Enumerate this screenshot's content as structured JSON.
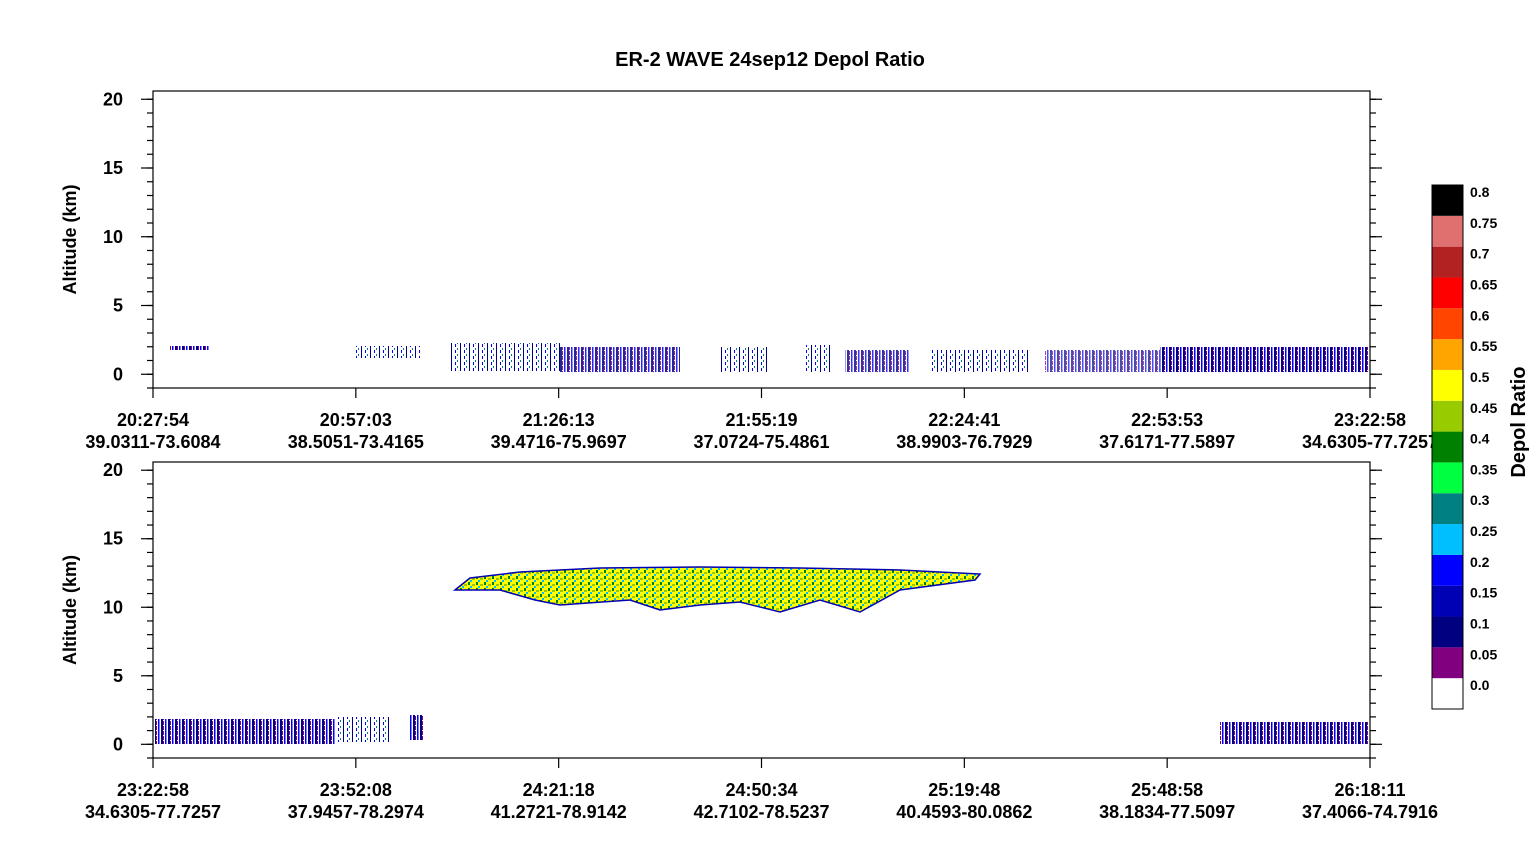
{
  "title": "ER-2 WAVE 24sep12 Depol Ratio",
  "chart_data": [
    {
      "type": "curtain",
      "ylabel": "Altitude (km)",
      "ylim": [
        -1,
        20.6
      ],
      "yticks": [
        0,
        5,
        10,
        15,
        20
      ],
      "xticks": [
        {
          "time": "20:27:54",
          "location": "39.0311-73.6084"
        },
        {
          "time": "20:57:03",
          "location": "38.5051-73.4165"
        },
        {
          "time": "21:26:13",
          "location": "39.4716-75.9697"
        },
        {
          "time": "21:55:19",
          "location": "37.0724-75.4861"
        },
        {
          "time": "22:24:41",
          "location": "38.9903-76.7929"
        },
        {
          "time": "22:53:53",
          "location": "37.6171-77.5897"
        },
        {
          "time": "23:22:58",
          "location": "34.6305-77.7257"
        }
      ]
    },
    {
      "type": "curtain",
      "ylabel": "Altitude (km)",
      "ylim": [
        -1,
        20.6
      ],
      "yticks": [
        0,
        5,
        10,
        15,
        20
      ],
      "xticks": [
        {
          "time": "23:22:58",
          "location": "34.6305-77.7257"
        },
        {
          "time": "23:52:08",
          "location": "37.9457-78.2974"
        },
        {
          "time": "24:21:18",
          "location": "41.2721-78.9142"
        },
        {
          "time": "24:50:34",
          "location": "42.7102-78.5237"
        },
        {
          "time": "25:19:48",
          "location": "40.4593-80.0862"
        },
        {
          "time": "25:48:58",
          "location": "38.1834-77.5097"
        },
        {
          "time": "26:18:11",
          "location": "37.4066-74.7916"
        }
      ]
    }
  ],
  "colorbar": {
    "label": "Depol Ratio",
    "levels": [
      {
        "value": 0,
        "label": "0.0",
        "color": "#ffffff"
      },
      {
        "value": 0.05,
        "color": "#800080"
      },
      {
        "value": 0.1,
        "color": "#000080"
      },
      {
        "value": 0.15,
        "color": "#0000b4"
      },
      {
        "value": 0.2,
        "color": "#0000ff"
      },
      {
        "value": 0.25,
        "color": "#00bfff"
      },
      {
        "value": 0.3,
        "color": "#008080"
      },
      {
        "value": 0.35,
        "color": "#00ff40"
      },
      {
        "value": 0.4,
        "color": "#008000"
      },
      {
        "value": 0.45,
        "color": "#99cc00"
      },
      {
        "value": 0.5,
        "color": "#ffff00"
      },
      {
        "value": 0.55,
        "color": "#ffa500"
      },
      {
        "value": 0.6,
        "color": "#ff4500"
      },
      {
        "value": 0.65,
        "color": "#ff0000"
      },
      {
        "value": 0.7,
        "color": "#b22222"
      },
      {
        "value": 0.75,
        "color": "#e07070"
      },
      {
        "value": 0.8,
        "color": "#000000"
      }
    ]
  }
}
